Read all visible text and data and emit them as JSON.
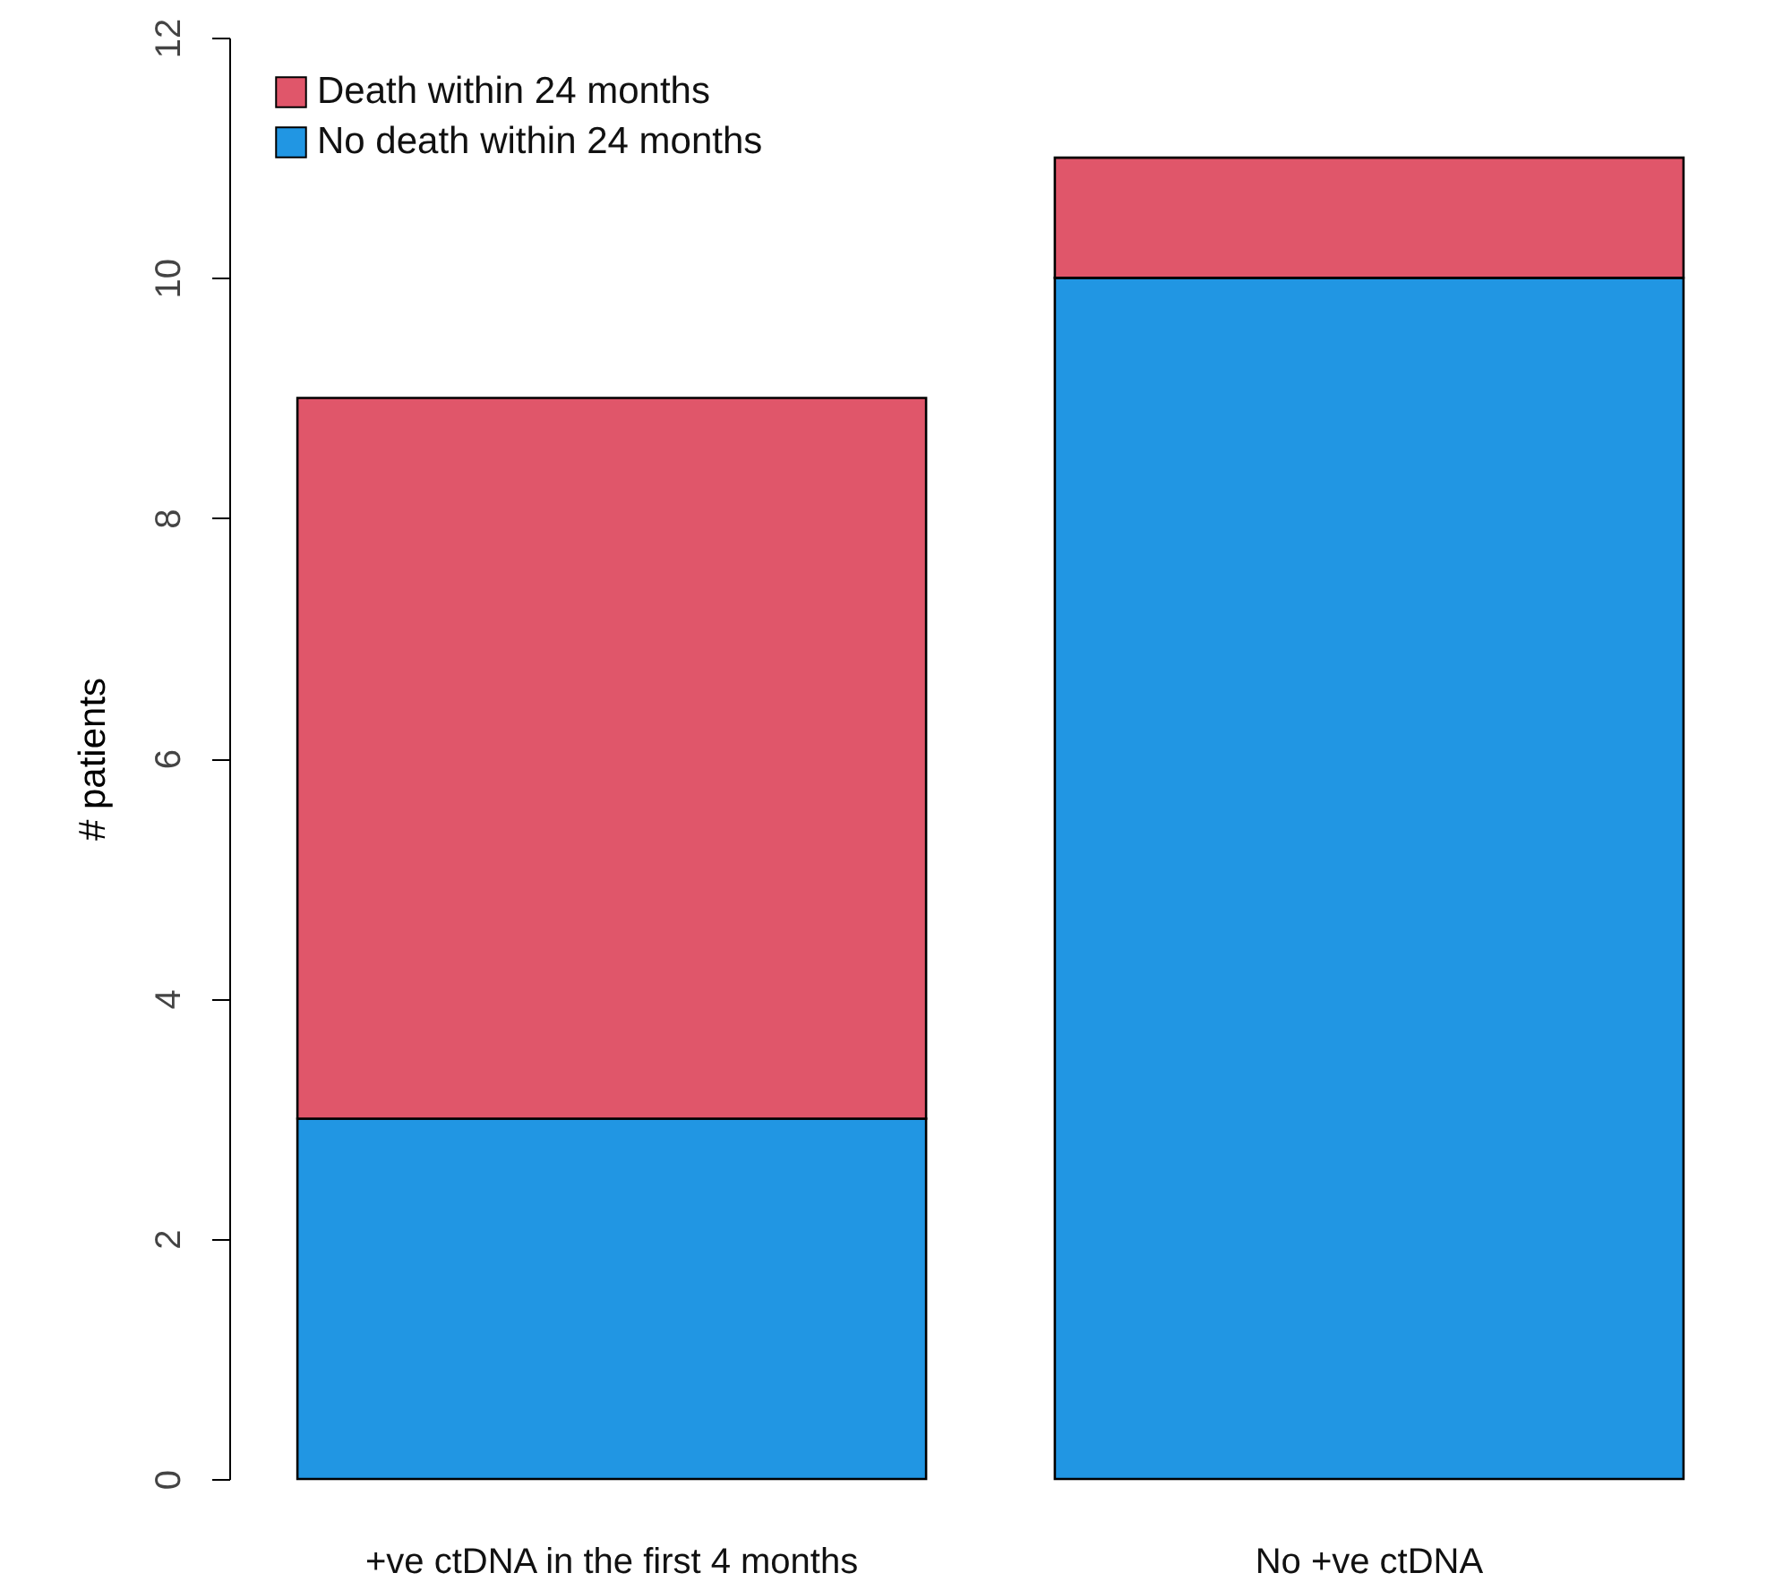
{
  "chart_data": {
    "type": "bar",
    "stacked": true,
    "ylabel": "# patients",
    "categories": [
      "+ve ctDNA in the first 4 months",
      "No +ve ctDNA"
    ],
    "series": [
      {
        "name": "No death within 24 months",
        "color": "#2196e3",
        "values": [
          3,
          10
        ]
      },
      {
        "name": "Death within 24 months",
        "color": "#e0566a",
        "values": [
          6,
          1
        ]
      }
    ],
    "ylim": [
      0,
      12
    ],
    "yticks": [
      0,
      2,
      4,
      6,
      8,
      10,
      12
    ],
    "legend": "top left"
  }
}
